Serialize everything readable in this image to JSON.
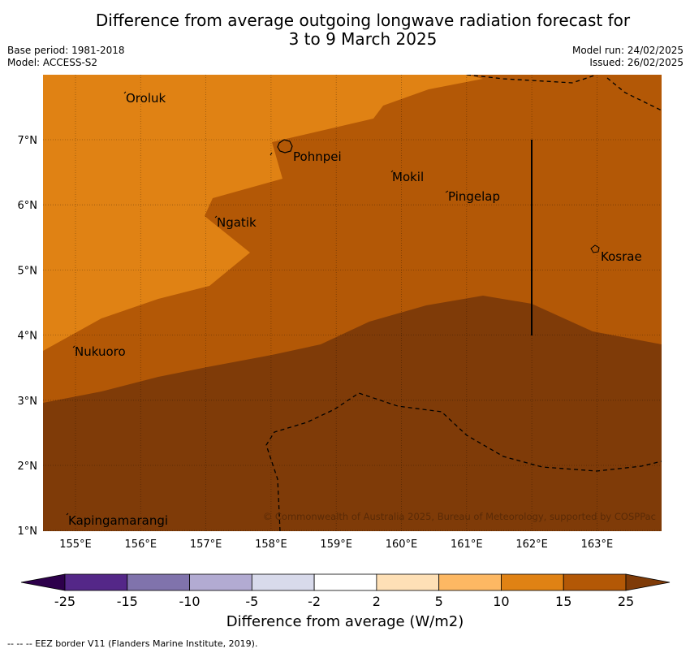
{
  "header": {
    "title_line1": "Difference from average outgoing longwave radiation forecast for",
    "title_line2": "3 to 9 March 2025",
    "base_period": "Base period: 1981-2018",
    "model": "Model: ACCESS-S2",
    "model_run": "Model run: 24/02/2025",
    "issued": "Issued: 26/02/2025"
  },
  "map": {
    "lon_ticks": [
      "155°E",
      "156°E",
      "157°E",
      "158°E",
      "159°E",
      "160°E",
      "161°E",
      "162°E",
      "163°E"
    ],
    "lat_ticks": [
      "7°N",
      "6°N",
      "5°N",
      "4°N",
      "3°N",
      "2°N",
      "1°N"
    ],
    "places": [
      "Oroluk",
      "Pohnpei",
      "Mokil",
      "Pingelap",
      "Ngatik",
      "Kosrae",
      "Nukuoro",
      "Kapingamarangi"
    ],
    "copyright": "© Commonwealth of Australia 2025, Bureau of Meteorology, supported by COSPPac",
    "legend_line": "--  --  -- EEZ border V11 (Flanders Marine Institute, 2019).",
    "colors": {
      "band_10_15": "#e08214",
      "band_15_25": "#b35806",
      "band_above_25": "#7f3b08"
    }
  },
  "colorbar": {
    "labels": [
      "-25",
      "-15",
      "-10",
      "-5",
      "-2",
      "2",
      "5",
      "10",
      "15",
      "25"
    ],
    "colors": [
      "#2d004b",
      "#542788",
      "#8073ac",
      "#b2abd2",
      "#d8daeb",
      "#ffffff",
      "#fee0b6",
      "#fdb863",
      "#e08214",
      "#b35806",
      "#7f3b08"
    ],
    "title": "Difference from average (W/m2)"
  }
}
